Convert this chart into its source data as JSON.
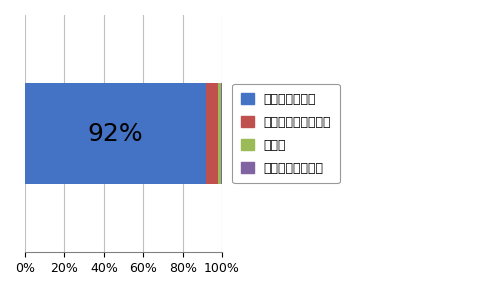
{
  "categories": [
    ""
  ],
  "series": [
    {
      "label": "有意義であった",
      "value": 92,
      "color": "#4472C4"
    },
    {
      "label": "どちらともいえない",
      "value": 6,
      "color": "#C0504D"
    },
    {
      "label": "その他",
      "value": 1.5,
      "color": "#9BBB59"
    },
    {
      "label": "有意義でなかった",
      "value": 0.5,
      "color": "#8064A2"
    }
  ],
  "bar_label": "92%",
  "bar_label_fontsize": 18,
  "xlim": [
    0,
    100
  ],
  "xticks": [
    0,
    20,
    40,
    60,
    80,
    100
  ],
  "xticklabels": [
    "0%",
    "20%",
    "40%",
    "60%",
    "80%",
    "100%"
  ],
  "background_color": "#FFFFFF",
  "grid_color": "#C0C0C0",
  "legend_fontsize": 9,
  "bar_height": 0.55,
  "figsize": [
    4.98,
    2.9
  ],
  "dpi": 100
}
